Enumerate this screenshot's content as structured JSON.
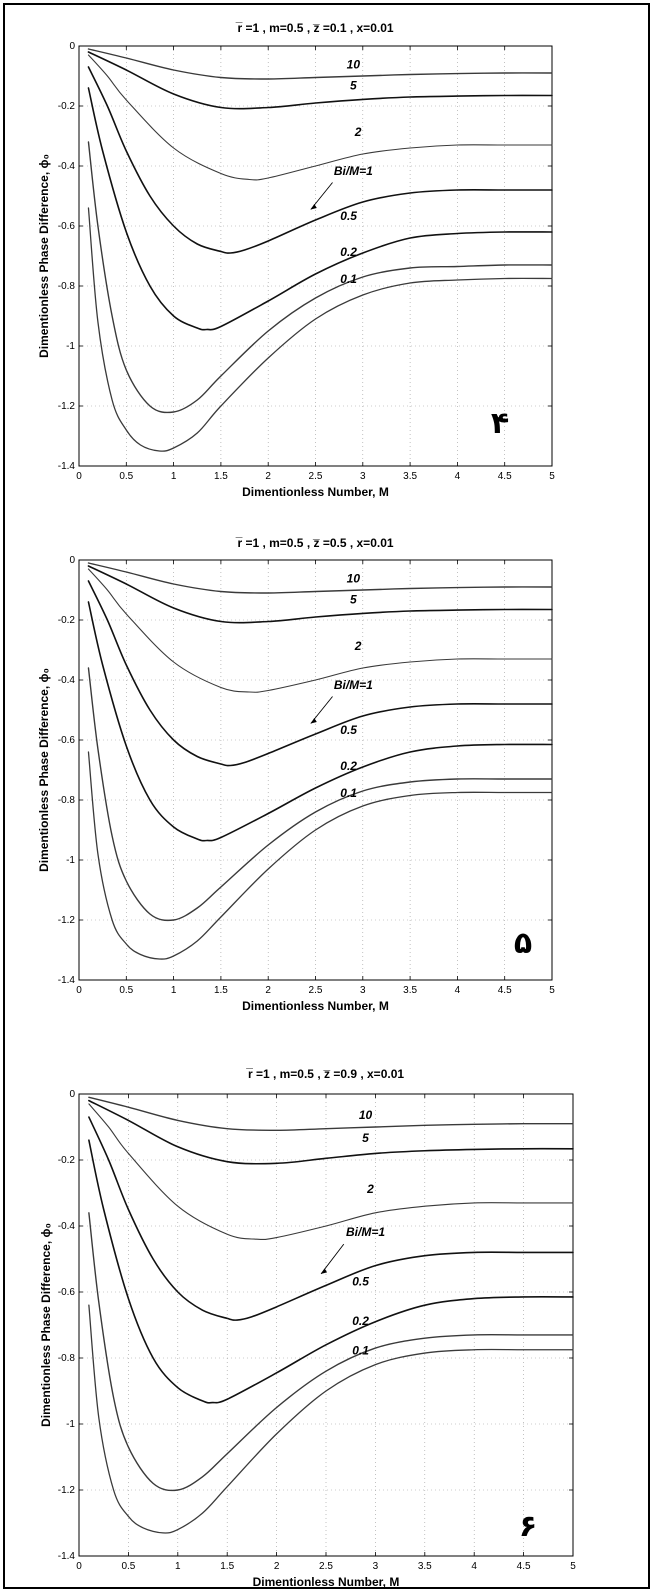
{
  "chart_data": [
    {
      "type": "line",
      "panel_number": "۴",
      "title": "r̅ =1 , m=0.5 , z̅ =0.1 , x=0.01",
      "xlabel": "Dimentionless Number, M",
      "ylabel": "Dimentionless Phase Difference, ϕ₀",
      "xlim": [
        0,
        5
      ],
      "ylim": [
        -1.4,
        0
      ],
      "xticks": [
        "0",
        "0.5",
        "1",
        "1.5",
        "2",
        "2.5",
        "3",
        "3.5",
        "4",
        "4.5",
        "5"
      ],
      "yticks": [
        "0",
        "-0.2",
        "-0.4",
        "-0.6",
        "-0.8",
        "-1",
        "-1.2",
        "-1.4"
      ],
      "grid": true,
      "series": [
        {
          "name": "10",
          "x": [
            0.1,
            0.5,
            1,
            1.5,
            2,
            2.5,
            3,
            3.5,
            4,
            4.5,
            5
          ],
          "y": [
            -0.01,
            -0.04,
            -0.08,
            -0.105,
            -0.11,
            -0.105,
            -0.1,
            -0.095,
            -0.092,
            -0.09,
            -0.09
          ]
        },
        {
          "name": "5",
          "x": [
            0.1,
            0.5,
            1,
            1.5,
            2,
            2.5,
            3,
            3.5,
            4,
            4.5,
            5
          ],
          "y": [
            -0.02,
            -0.08,
            -0.16,
            -0.205,
            -0.205,
            -0.19,
            -0.178,
            -0.17,
            -0.167,
            -0.165,
            -0.165
          ]
        },
        {
          "name": "2",
          "x": [
            0.1,
            0.3,
            0.5,
            1,
            1.5,
            1.8,
            2,
            2.5,
            3,
            3.5,
            4,
            4.5,
            5
          ],
          "y": [
            -0.03,
            -0.1,
            -0.18,
            -0.34,
            -0.425,
            -0.445,
            -0.44,
            -0.4,
            -0.36,
            -0.34,
            -0.33,
            -0.33,
            -0.33
          ]
        },
        {
          "name": "Bi/M=1",
          "x": [
            0.1,
            0.3,
            0.5,
            0.75,
            1,
            1.25,
            1.5,
            1.6,
            1.75,
            2,
            2.5,
            3,
            3.5,
            4,
            4.5,
            5
          ],
          "y": [
            -0.07,
            -0.2,
            -0.35,
            -0.5,
            -0.6,
            -0.66,
            -0.685,
            -0.69,
            -0.68,
            -0.65,
            -0.58,
            -0.52,
            -0.49,
            -0.48,
            -0.48,
            -0.48
          ]
        },
        {
          "name": "0.5",
          "x": [
            0.1,
            0.25,
            0.5,
            0.75,
            1,
            1.25,
            1.35,
            1.5,
            2,
            2.5,
            3,
            3.5,
            4,
            4.5,
            5
          ],
          "y": [
            -0.14,
            -0.35,
            -0.62,
            -0.8,
            -0.9,
            -0.94,
            -0.945,
            -0.935,
            -0.85,
            -0.76,
            -0.69,
            -0.64,
            -0.625,
            -0.62,
            -0.62
          ]
        },
        {
          "name": "0.2",
          "x": [
            0.1,
            0.2,
            0.35,
            0.5,
            0.75,
            1,
            1.25,
            1.5,
            2,
            2.5,
            3,
            3.5,
            4,
            4.5,
            5
          ],
          "y": [
            -0.32,
            -0.6,
            -0.9,
            -1.08,
            -1.2,
            -1.22,
            -1.18,
            -1.1,
            -0.95,
            -0.84,
            -0.77,
            -0.74,
            -0.735,
            -0.73,
            -0.73
          ]
        },
        {
          "name": "0.1",
          "x": [
            0.1,
            0.2,
            0.35,
            0.5,
            0.65,
            0.85,
            1,
            1.25,
            1.5,
            2,
            2.5,
            3,
            3.5,
            4,
            4.5,
            5
          ],
          "y": [
            -0.54,
            -0.92,
            -1.18,
            -1.28,
            -1.33,
            -1.35,
            -1.34,
            -1.29,
            -1.2,
            -1.04,
            -0.91,
            -0.83,
            -0.79,
            -0.78,
            -0.775,
            -0.775
          ]
        }
      ]
    },
    {
      "type": "line",
      "panel_number": "۵",
      "title": "r̅ =1 , m=0.5 , z̅ =0.5 , x=0.01",
      "xlabel": "Dimentionless Number, M",
      "ylabel": "Dimentionless Phase Difference, ϕ₀",
      "xlim": [
        0,
        5
      ],
      "ylim": [
        -1.4,
        0
      ],
      "xticks": [
        "0",
        "0.5",
        "1",
        "1.5",
        "2",
        "2.5",
        "3",
        "3.5",
        "4",
        "4.5",
        "5"
      ],
      "yticks": [
        "0",
        "-0.2",
        "-0.4",
        "-0.6",
        "-0.8",
        "-1",
        "-1.2",
        "-1.4"
      ],
      "grid": true,
      "series": [
        {
          "name": "10",
          "x": [
            0.1,
            0.5,
            1,
            1.5,
            2,
            2.5,
            3,
            3.5,
            4,
            4.5,
            5
          ],
          "y": [
            -0.01,
            -0.04,
            -0.08,
            -0.105,
            -0.11,
            -0.105,
            -0.1,
            -0.095,
            -0.092,
            -0.09,
            -0.09
          ]
        },
        {
          "name": "5",
          "x": [
            0.1,
            0.5,
            1,
            1.5,
            2,
            2.5,
            3,
            3.5,
            4,
            4.5,
            5
          ],
          "y": [
            -0.02,
            -0.08,
            -0.16,
            -0.205,
            -0.205,
            -0.19,
            -0.178,
            -0.17,
            -0.167,
            -0.165,
            -0.165
          ]
        },
        {
          "name": "2",
          "x": [
            0.1,
            0.3,
            0.5,
            1,
            1.5,
            1.8,
            2,
            2.5,
            3,
            3.5,
            4,
            4.5,
            5
          ],
          "y": [
            -0.03,
            -0.1,
            -0.18,
            -0.34,
            -0.425,
            -0.44,
            -0.435,
            -0.4,
            -0.36,
            -0.34,
            -0.33,
            -0.33,
            -0.33
          ]
        },
        {
          "name": "Bi/M=1",
          "x": [
            0.1,
            0.3,
            0.5,
            0.75,
            1,
            1.25,
            1.5,
            1.6,
            1.75,
            2,
            2.5,
            3,
            3.5,
            4,
            4.5,
            5
          ],
          "y": [
            -0.07,
            -0.2,
            -0.35,
            -0.5,
            -0.6,
            -0.655,
            -0.68,
            -0.685,
            -0.675,
            -0.645,
            -0.58,
            -0.52,
            -0.49,
            -0.48,
            -0.48,
            -0.48
          ]
        },
        {
          "name": "0.5",
          "x": [
            0.1,
            0.25,
            0.5,
            0.75,
            1,
            1.25,
            1.35,
            1.5,
            2,
            2.5,
            3,
            3.5,
            4,
            4.5,
            5
          ],
          "y": [
            -0.14,
            -0.35,
            -0.62,
            -0.8,
            -0.89,
            -0.93,
            -0.935,
            -0.925,
            -0.845,
            -0.76,
            -0.69,
            -0.64,
            -0.62,
            -0.615,
            -0.615
          ]
        },
        {
          "name": "0.2",
          "x": [
            0.1,
            0.2,
            0.35,
            0.5,
            0.75,
            1,
            1.25,
            1.5,
            2,
            2.5,
            3,
            3.5,
            4,
            4.5,
            5
          ],
          "y": [
            -0.36,
            -0.63,
            -0.92,
            -1.07,
            -1.18,
            -1.2,
            -1.16,
            -1.09,
            -0.95,
            -0.84,
            -0.77,
            -0.74,
            -0.73,
            -0.73,
            -0.73
          ]
        },
        {
          "name": "0.1",
          "x": [
            0.1,
            0.2,
            0.35,
            0.5,
            0.65,
            0.85,
            1,
            1.25,
            1.5,
            2,
            2.5,
            3,
            3.5,
            4,
            4.5,
            5
          ],
          "y": [
            -0.64,
            -0.98,
            -1.2,
            -1.28,
            -1.315,
            -1.33,
            -1.32,
            -1.27,
            -1.19,
            -1.03,
            -0.9,
            -0.82,
            -0.785,
            -0.775,
            -0.775,
            -0.775
          ]
        }
      ]
    },
    {
      "type": "line",
      "panel_number": "۶",
      "title": "r̅ =1 , m=0.5 , z̅ =0.9 , x=0.01",
      "xlabel": "Dimentionless Number, M",
      "ylabel": "Dimentionless Phase Difference, ϕ₀",
      "xlim": [
        0,
        5
      ],
      "ylim": [
        -1.4,
        0
      ],
      "xticks": [
        "0",
        "0.5",
        "1",
        "1.5",
        "2",
        "2.5",
        "3",
        "3.5",
        "4",
        "4.5",
        "5"
      ],
      "yticks": [
        "0",
        "-0.2",
        "-0.4",
        "-0.6",
        "-0.8",
        "-1",
        "-1.2",
        "-1.4"
      ],
      "grid": true,
      "series": [
        {
          "name": "10",
          "x": [
            0.1,
            0.5,
            1,
            1.5,
            2,
            2.5,
            3,
            3.5,
            4,
            4.5,
            5
          ],
          "y": [
            -0.01,
            -0.04,
            -0.08,
            -0.105,
            -0.11,
            -0.105,
            -0.1,
            -0.095,
            -0.092,
            -0.09,
            -0.09
          ]
        },
        {
          "name": "5",
          "x": [
            0.1,
            0.5,
            1,
            1.5,
            2,
            2.5,
            3,
            3.5,
            4,
            4.5,
            5
          ],
          "y": [
            -0.02,
            -0.08,
            -0.16,
            -0.205,
            -0.21,
            -0.195,
            -0.18,
            -0.172,
            -0.168,
            -0.166,
            -0.166
          ]
        },
        {
          "name": "2",
          "x": [
            0.1,
            0.3,
            0.5,
            1,
            1.5,
            1.8,
            2,
            2.5,
            3,
            3.5,
            4,
            4.5,
            5
          ],
          "y": [
            -0.03,
            -0.1,
            -0.18,
            -0.34,
            -0.425,
            -0.44,
            -0.435,
            -0.4,
            -0.36,
            -0.34,
            -0.33,
            -0.33,
            -0.33
          ]
        },
        {
          "name": "Bi/M=1",
          "x": [
            0.1,
            0.3,
            0.5,
            0.75,
            1,
            1.25,
            1.5,
            1.6,
            1.75,
            2,
            2.5,
            3,
            3.5,
            4,
            4.5,
            5
          ],
          "y": [
            -0.07,
            -0.2,
            -0.35,
            -0.5,
            -0.6,
            -0.655,
            -0.68,
            -0.685,
            -0.675,
            -0.645,
            -0.58,
            -0.52,
            -0.49,
            -0.48,
            -0.48,
            -0.48
          ]
        },
        {
          "name": "0.5",
          "x": [
            0.1,
            0.25,
            0.5,
            0.75,
            1,
            1.25,
            1.35,
            1.5,
            2,
            2.5,
            3,
            3.5,
            4,
            4.5,
            5
          ],
          "y": [
            -0.14,
            -0.35,
            -0.62,
            -0.8,
            -0.89,
            -0.93,
            -0.935,
            -0.925,
            -0.845,
            -0.76,
            -0.69,
            -0.64,
            -0.62,
            -0.615,
            -0.615
          ]
        },
        {
          "name": "0.2",
          "x": [
            0.1,
            0.2,
            0.35,
            0.5,
            0.75,
            1,
            1.25,
            1.5,
            2,
            2.5,
            3,
            3.5,
            4,
            4.5,
            5
          ],
          "y": [
            -0.36,
            -0.63,
            -0.92,
            -1.07,
            -1.18,
            -1.2,
            -1.16,
            -1.09,
            -0.95,
            -0.84,
            -0.77,
            -0.74,
            -0.73,
            -0.73,
            -0.73
          ]
        },
        {
          "name": "0.1",
          "x": [
            0.1,
            0.2,
            0.35,
            0.5,
            0.65,
            0.85,
            1,
            1.25,
            1.5,
            2,
            2.5,
            3,
            3.5,
            4,
            4.5,
            5
          ],
          "y": [
            -0.64,
            -0.98,
            -1.2,
            -1.28,
            -1.315,
            -1.33,
            -1.32,
            -1.27,
            -1.19,
            -1.03,
            -0.9,
            -0.82,
            -0.785,
            -0.775,
            -0.775,
            -0.775
          ]
        }
      ]
    }
  ]
}
